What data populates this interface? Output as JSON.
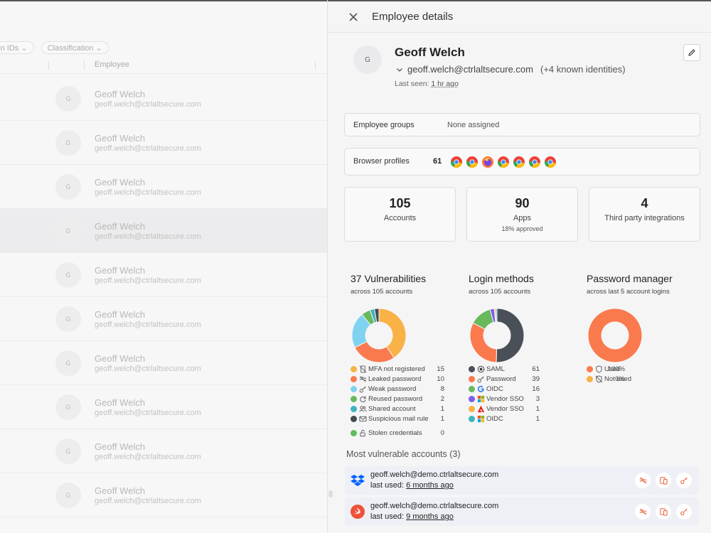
{
  "background": {
    "filters": [
      "tion IDs",
      "Classification"
    ],
    "column_header": "Employee",
    "rows": [
      {
        "avatar": "G",
        "name": "Geoff Welch",
        "email": "geoff.welch@ctrlaltsecure.com"
      },
      {
        "avatar": "G",
        "name": "Geoff Welch",
        "email": "geoff.welch@ctrlaltsecure.com"
      },
      {
        "avatar": "G",
        "name": "Geoff Welch",
        "email": "geoff.welch@ctrlaltsecure.com"
      },
      {
        "avatar": "G",
        "name": "Geoff Welch",
        "email": "geoff.welch@ctrlaltsecure.com"
      },
      {
        "avatar": "G",
        "name": "Geoff Welch",
        "email": "geoff.welch@ctrlaltsecure.com"
      },
      {
        "avatar": "G",
        "name": "Geoff Welch",
        "email": "geoff.welch@ctrlaltsecure.com"
      },
      {
        "avatar": "G",
        "name": "Geoff Welch",
        "email": "geoff.welch@ctrlaltsecure.com"
      },
      {
        "avatar": "G",
        "name": "Geoff Welch",
        "email": "geoff.welch@ctrlaltsecure.com"
      },
      {
        "avatar": "G",
        "name": "Geoff Welch",
        "email": "geoff.welch@ctrlaltsecure.com"
      },
      {
        "avatar": "G",
        "name": "Geoff Welch",
        "email": "geoff.welch@ctrlaltsecure.com"
      }
    ]
  },
  "drawer": {
    "title": "Employee details",
    "profile": {
      "avatar": "G",
      "name": "Geoff Welch",
      "email": "geoff.welch@ctrlaltsecure.com",
      "known": "(+4 known identities)",
      "last_seen_label": "Last seen:",
      "last_seen_value": "1 hr ago"
    },
    "employee_groups": {
      "label": "Employee groups",
      "value": "None assigned"
    },
    "browser_profiles": {
      "label": "Browser profiles",
      "count": "61",
      "icons": [
        "chrome-icon",
        "chrome-icon",
        "firefox-icon",
        "chrome-icon",
        "chrome-icon",
        "chrome-icon",
        "chrome-icon"
      ]
    },
    "stats": [
      {
        "number": "105",
        "label": "Accounts",
        "sub": ""
      },
      {
        "number": "90",
        "label": "Apps",
        "sub": "18% approved"
      },
      {
        "number": "4",
        "label": "Third party integrations",
        "sub": ""
      }
    ],
    "vulnerabilities": {
      "title": "37 Vulnerabilities",
      "subtitle": "across 105 accounts",
      "items": [
        {
          "label": "MFA not registered",
          "count": 15,
          "color": "#f9b246",
          "icon": "phone-off-icon"
        },
        {
          "label": "Leaked password",
          "count": 10,
          "color": "#fa7a4e",
          "icon": "leak-icon"
        },
        {
          "label": "Weak password",
          "count": 8,
          "color": "#7fd3f0",
          "icon": "key-icon"
        },
        {
          "label": "Reused password",
          "count": 2,
          "color": "#69b95c",
          "icon": "refresh-icon"
        },
        {
          "label": "Shared account",
          "count": 1,
          "color": "#3fb3bd",
          "icon": "users-icon"
        },
        {
          "label": "Suspicious mail rule",
          "count": 1,
          "color": "#444a52",
          "icon": "mail-icon"
        },
        {
          "label": "Stolen credentials",
          "count": 0,
          "color": "#5bbf5b",
          "icon": "unlock-icon"
        }
      ]
    },
    "login_methods": {
      "title": "Login methods",
      "subtitle": "across 105 accounts",
      "items": [
        {
          "label": "SAML",
          "count": 61,
          "color": "#4a5058",
          "icon": "saml-icon"
        },
        {
          "label": "Password",
          "count": 39,
          "color": "#fa7a4e",
          "icon": "key-icon"
        },
        {
          "label": "OIDC",
          "count": 16,
          "color": "#69b95c",
          "icon": "google-icon"
        },
        {
          "label": "Vendor SSO",
          "count": 3,
          "color": "#7b5cf0",
          "icon": "microsoft-icon"
        },
        {
          "label": "Vendor SSO",
          "count": 1,
          "color": "#f9b246",
          "icon": "adobe-icon"
        },
        {
          "label": "OIDC",
          "count": 1,
          "color": "#3fb3bd",
          "icon": "microsoft-icon"
        }
      ]
    },
    "password_manager": {
      "title": "Password manager",
      "subtitle": "across last 5 account logins",
      "items": [
        {
          "label": "Used",
          "value": "100%",
          "fraction": 1.0,
          "color": "#fa7a4e",
          "icon": "shield-icon"
        },
        {
          "label": "Not used",
          "value": "0%",
          "fraction": 0.0,
          "color": "#f9b246",
          "icon": "shield-off-icon"
        }
      ]
    },
    "most_vulnerable": {
      "title": "Most vulnerable accounts (3)",
      "accounts": [
        {
          "email": "geoff.welch@demo.ctrlaltsecure.com",
          "last_used_label": "last used:",
          "last_used_value": "6 months ago",
          "logo": "dropbox-icon"
        },
        {
          "email": "geoff.welch@demo.ctrlaltsecure.com",
          "last_used_label": "last used:",
          "last_used_value": "9 months ago",
          "logo": "swift-icon"
        }
      ]
    }
  }
}
